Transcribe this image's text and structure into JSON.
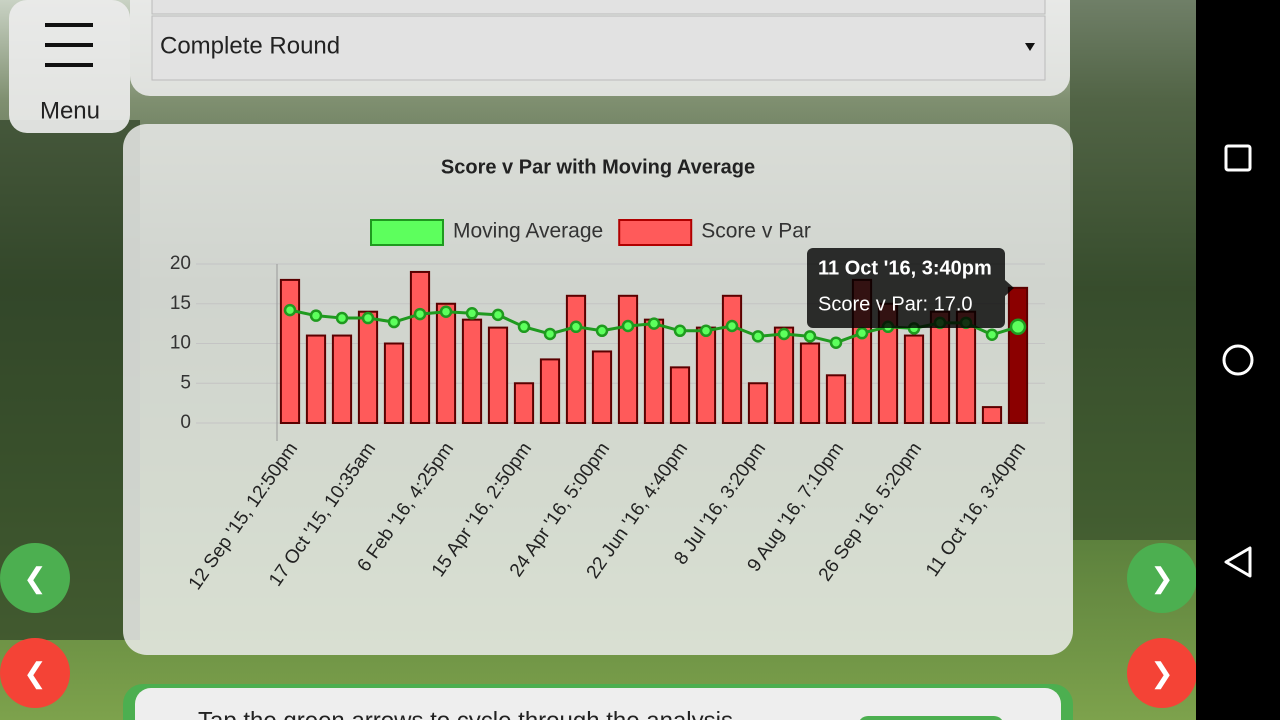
{
  "header": {
    "menu_label": "Menu",
    "round_select": "Complete Round"
  },
  "nav_buttons": {
    "prev_green": "❮",
    "next_green": "❯",
    "prev_red": "❮",
    "next_red": "❯"
  },
  "footer": {
    "hint": "Tap the green arrows to cycle through the analysis"
  },
  "chart_data": {
    "type": "bar",
    "title": "Score v Par with Moving Average",
    "categories": [
      "12 Sep '15, 12:50pm",
      null,
      null,
      "17 Oct '15, 10:35am",
      null,
      null,
      "6 Feb '16, 4:25pm",
      null,
      null,
      "15 Apr '16, 2:50pm",
      null,
      null,
      "24 Apr '16, 5:00pm",
      null,
      null,
      "22 Jun '16, 4:40pm",
      null,
      null,
      "8 Jul '16, 3:20pm",
      null,
      null,
      "9 Aug '16, 7:10pm",
      null,
      null,
      "26 Sep '16, 5:20pm",
      null,
      null,
      null,
      "11 Oct '16, 3:40pm"
    ],
    "series": [
      {
        "name": "Moving Average",
        "type": "line",
        "color": "#5dff5d",
        "line_color": "#1f9a1f",
        "values": [
          14.2,
          13.5,
          13.2,
          13.2,
          12.7,
          13.7,
          14.0,
          13.8,
          13.6,
          12.1,
          11.2,
          12.1,
          11.6,
          12.2,
          12.5,
          11.6,
          11.6,
          12.2,
          10.9,
          11.2,
          10.9,
          10.1,
          11.3,
          12.1,
          11.9,
          12.6,
          12.6,
          11.1,
          12.1
        ]
      },
      {
        "name": "Score v Par",
        "type": "bar",
        "color": "#ff5a5a",
        "highlight_color": "#8b0000",
        "values": [
          18,
          11,
          11,
          14,
          10,
          19,
          15,
          13,
          12,
          5,
          8,
          16,
          9,
          16,
          13,
          7,
          12,
          16,
          5,
          12,
          10,
          6,
          18,
          15,
          11,
          14,
          14,
          2,
          17
        ]
      }
    ],
    "ylim": [
      0,
      20
    ],
    "yticks": [
      0,
      5,
      10,
      15,
      20
    ],
    "grid": true,
    "tooltip": {
      "index": 28,
      "title": "11 Oct '16, 3:40pm",
      "text": "Score v Par: 17.0"
    }
  }
}
